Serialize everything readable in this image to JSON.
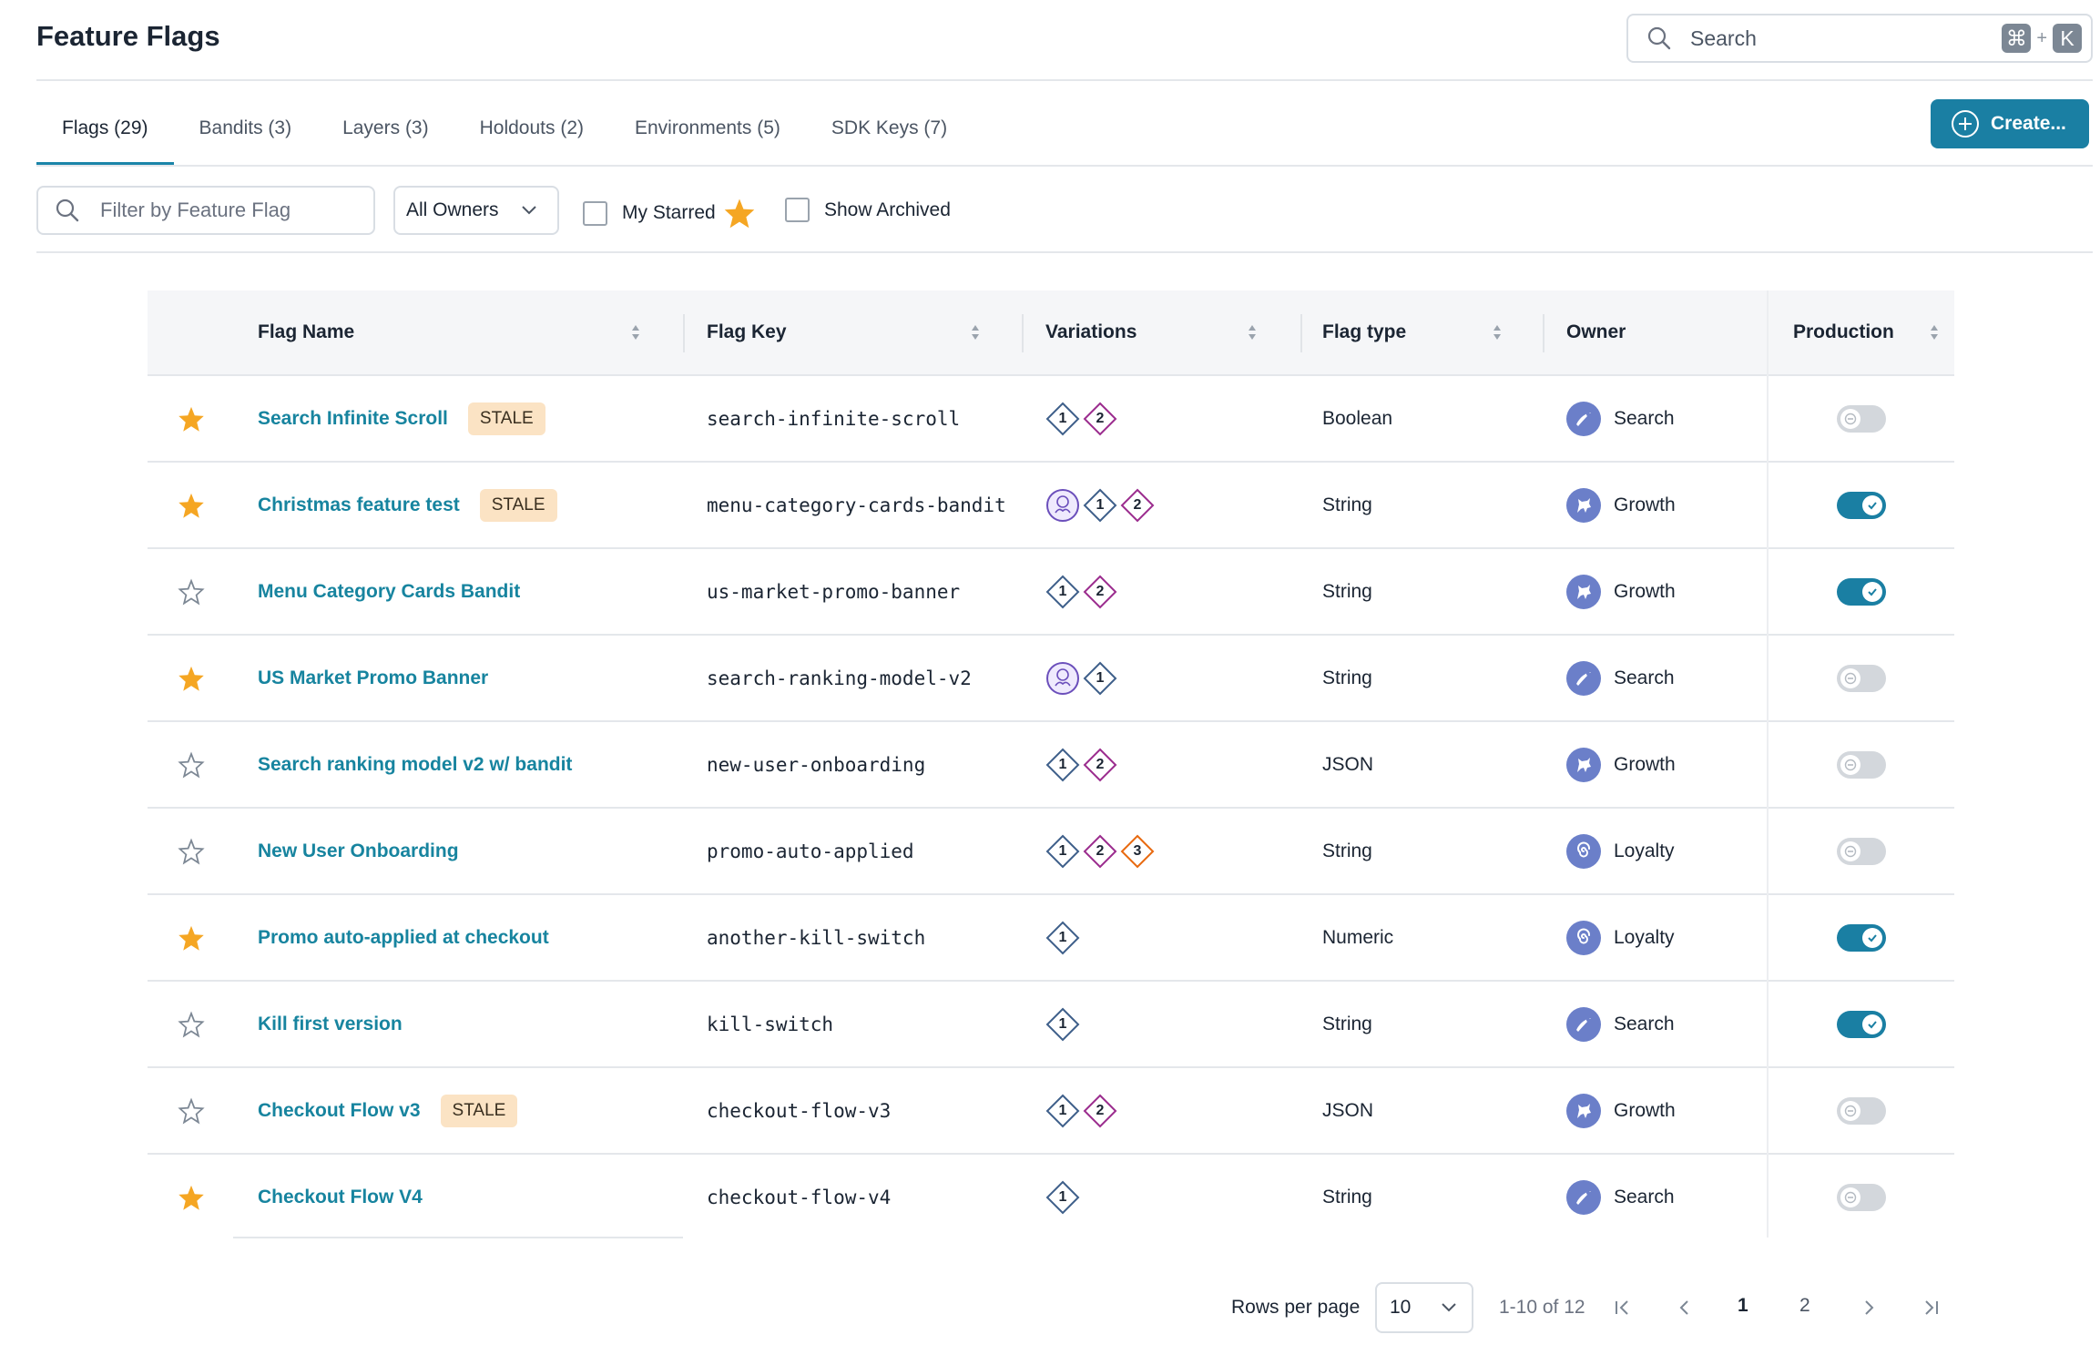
{
  "header": {
    "title": "Feature Flags",
    "search_placeholder": "Search",
    "shortcut_key1": "⌘",
    "shortcut_plus": "+",
    "shortcut_key2": "K"
  },
  "tabs": [
    {
      "label": "Flags (29)",
      "active": true
    },
    {
      "label": "Bandits (3)"
    },
    {
      "label": "Layers (3)"
    },
    {
      "label": "Holdouts (2)"
    },
    {
      "label": "Environments (5)"
    },
    {
      "label": "SDK Keys (7)"
    }
  ],
  "create_label": "Create...",
  "filters": {
    "search_placeholder": "Filter by Feature Flag",
    "owner_select": "All Owners",
    "my_starred": "My Starred",
    "show_archived": "Show Archived"
  },
  "columns": {
    "flag_name": "Flag Name",
    "flag_key": "Flag Key",
    "variations": "Variations",
    "flag_type": "Flag type",
    "owner": "Owner",
    "production": "Production"
  },
  "rows": [
    {
      "starred": true,
      "name": "Search Infinite Scroll",
      "stale": "STALE",
      "key": "search-infinite-scroll",
      "variations": [
        "1",
        "2"
      ],
      "type": "Boolean",
      "owner": "Search",
      "owner_icon": "search-team-icon",
      "production": false
    },
    {
      "starred": true,
      "name": "Christmas feature test",
      "stale": "STALE",
      "key": "menu-category-cards-bandit",
      "variations": [
        "bandit",
        "1",
        "2"
      ],
      "type": "String",
      "owner": "Growth",
      "owner_icon": "growth-team-icon",
      "production": true
    },
    {
      "starred": false,
      "name": "Menu Category Cards Bandit",
      "stale": "",
      "key": "us-market-promo-banner",
      "variations": [
        "1",
        "2"
      ],
      "type": "String",
      "owner": "Growth",
      "owner_icon": "growth-team-icon",
      "production": true
    },
    {
      "starred": true,
      "name": "US Market Promo Banner",
      "stale": "",
      "key": "search-ranking-model-v2",
      "variations": [
        "bandit",
        "1"
      ],
      "type": "String",
      "owner": "Search",
      "owner_icon": "search-team-icon",
      "production": false
    },
    {
      "starred": false,
      "name": "Search ranking model v2 w/ bandit",
      "stale": "",
      "key": "new-user-onboarding",
      "variations": [
        "1",
        "2"
      ],
      "type": "JSON",
      "owner": "Growth",
      "owner_icon": "growth-team-icon",
      "production": false
    },
    {
      "starred": false,
      "name": "New User Onboarding",
      "stale": "",
      "key": "promo-auto-applied",
      "variations": [
        "1",
        "2",
        "3"
      ],
      "type": "String",
      "owner": "Loyalty",
      "owner_icon": "loyalty-team-icon",
      "production": false
    },
    {
      "starred": true,
      "name": "Promo auto-applied at checkout",
      "stale": "",
      "key": "another-kill-switch",
      "variations": [
        "1"
      ],
      "type": "Numeric",
      "owner": "Loyalty",
      "owner_icon": "loyalty-team-icon",
      "production": true
    },
    {
      "starred": false,
      "name": "Kill first version",
      "stale": "",
      "key": "kill-switch",
      "variations": [
        "1"
      ],
      "type": "String",
      "owner": "Search",
      "owner_icon": "search-team-icon",
      "production": true
    },
    {
      "starred": false,
      "name": "Checkout Flow v3",
      "stale": "STALE",
      "key": "checkout-flow-v3",
      "variations": [
        "1",
        "2"
      ],
      "type": "JSON",
      "owner": "Growth",
      "owner_icon": "growth-team-icon",
      "production": false
    },
    {
      "starred": true,
      "name": "Checkout Flow V4",
      "stale": "",
      "key": "checkout-flow-v4",
      "variations": [
        "1"
      ],
      "type": "String",
      "owner": "Search",
      "owner_icon": "search-team-icon",
      "production": false
    }
  ],
  "pagination": {
    "rows_per_page_label": "Rows per page",
    "rows_per_page_value": "10",
    "range": "1-10 of 12",
    "pages": [
      "1",
      "2"
    ],
    "current_page": "1"
  },
  "colors": {
    "accent": "#1a7fa3",
    "link": "#17849f",
    "star": "#f5a623",
    "stale_bg": "#fbe3c4",
    "variation_1": "#3e5f8a",
    "variation_2": "#9b2c8e",
    "variation_3": "#e8690f",
    "bandit": "#6b4fbb"
  }
}
